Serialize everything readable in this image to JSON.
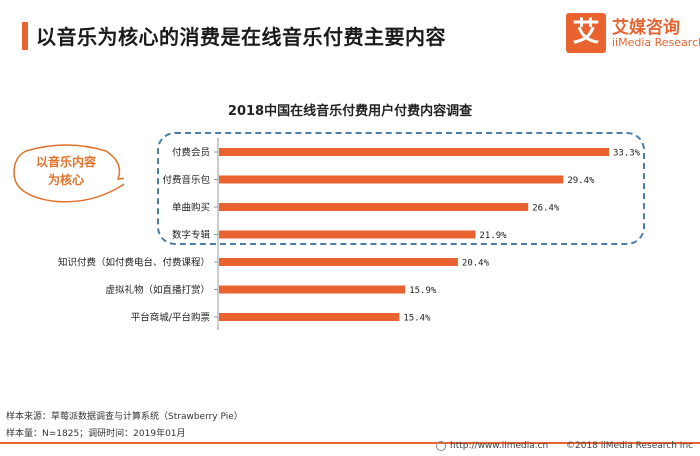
{
  "page": {
    "title": "以音乐为核心的消费是在线音乐付费主要内容"
  },
  "logo": {
    "mark": "艾",
    "cn": "艾媒咨询",
    "en": "iiMedia Research"
  },
  "callout": {
    "line1": "以音乐内容",
    "line2": "为核心"
  },
  "colors": {
    "accent": "#e8632f",
    "bar": "#e8632f",
    "dashed_box": "#4a7ea8"
  },
  "chart_data": {
    "type": "bar",
    "orientation": "horizontal",
    "title": "2018中国在线音乐付费用户付费内容调查",
    "categories": [
      "付费会员",
      "付费音乐包",
      "单曲购买",
      "数字专辑",
      "知识付费（如付费电台、付费课程）",
      "虚拟礼物（如直播打赏）",
      "平台商城/平台购票"
    ],
    "values": [
      33.3,
      29.4,
      26.4,
      21.9,
      20.4,
      15.9,
      15.4
    ],
    "value_labels": [
      "33.3%",
      "29.4%",
      "26.4%",
      "21.9%",
      "20.4%",
      "15.9%",
      "15.4%"
    ],
    "xlim": [
      0,
      35
    ],
    "grid": false,
    "legend": "none"
  },
  "footer": {
    "source": "样本来源：草莓派数据调查与计算系统（Strawberry Pie）",
    "sample": "样本量：N=1825；调研时间：2019年01月",
    "url": "http://www.iimedia.cn",
    "copyright": "©2018  iiMedia Research  Inc"
  }
}
